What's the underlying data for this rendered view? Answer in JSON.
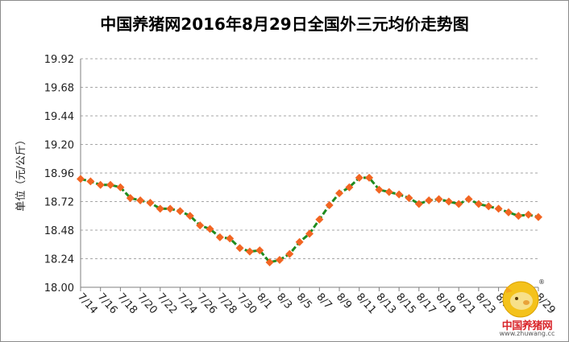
{
  "chart_data": {
    "type": "line",
    "title": "中国养猪网2016年8月29日全国外三元均价走势图",
    "ylabel": "单位（元/公斤）",
    "xlabel": "",
    "ylim": [
      18.0,
      19.92
    ],
    "yticks": [
      "19.92",
      "19.68",
      "19.44",
      "19.20",
      "18.96",
      "18.72",
      "18.48",
      "18.24",
      "18.00"
    ],
    "ytick_values": [
      19.92,
      19.68,
      19.44,
      19.2,
      18.96,
      18.72,
      18.48,
      18.24,
      18.0
    ],
    "grid": "horizontal-dashed",
    "legend": "none",
    "x": [
      "7/14",
      "7/15",
      "7/16",
      "7/17",
      "7/18",
      "7/19",
      "7/20",
      "7/21",
      "7/22",
      "7/23",
      "7/24",
      "7/25",
      "7/26",
      "7/27",
      "7/28",
      "7/29",
      "7/30",
      "7/31",
      "8/1",
      "8/2",
      "8/3",
      "8/4",
      "8/5",
      "8/6",
      "8/7",
      "8/8",
      "8/9",
      "8/10",
      "8/11",
      "8/12",
      "8/13",
      "8/14",
      "8/15",
      "8/16",
      "8/17",
      "8/18",
      "8/19",
      "8/20",
      "8/21",
      "8/22",
      "8/23",
      "8/24",
      "8/25",
      "8/26",
      "8/27",
      "8/28",
      "8/29"
    ],
    "xtick_labels": [
      "7/14",
      "7/16",
      "7/18",
      "7/20",
      "7/22",
      "7/24",
      "7/26",
      "7/28",
      "7/30",
      "8/1",
      "8/3",
      "8/5",
      "8/7",
      "8/9",
      "8/11",
      "8/13",
      "8/15",
      "8/17",
      "8/19",
      "8/21",
      "8/23",
      "8/25",
      "8/27",
      "8/29"
    ],
    "series": [
      {
        "values": [
          18.91,
          18.89,
          18.86,
          18.86,
          18.84,
          18.75,
          18.73,
          18.71,
          18.66,
          18.66,
          18.64,
          18.6,
          18.52,
          18.49,
          18.42,
          18.41,
          18.33,
          18.3,
          18.31,
          18.21,
          18.23,
          18.28,
          18.38,
          18.45,
          18.57,
          18.69,
          18.79,
          18.84,
          18.92,
          18.92,
          18.82,
          18.8,
          18.78,
          18.75,
          18.7,
          18.73,
          18.74,
          18.72,
          18.7,
          18.74,
          18.7,
          18.68,
          18.66,
          18.63,
          18.6,
          18.61,
          18.59
        ]
      }
    ],
    "colors": {
      "line": "#1f8c1f",
      "marker": "#f26522",
      "grid": "#a6a6a6",
      "axis": "#7f7f7f"
    }
  },
  "logo": {
    "text": "中国养猪网",
    "url": "www.zhuwang.cc",
    "reg": "®"
  }
}
